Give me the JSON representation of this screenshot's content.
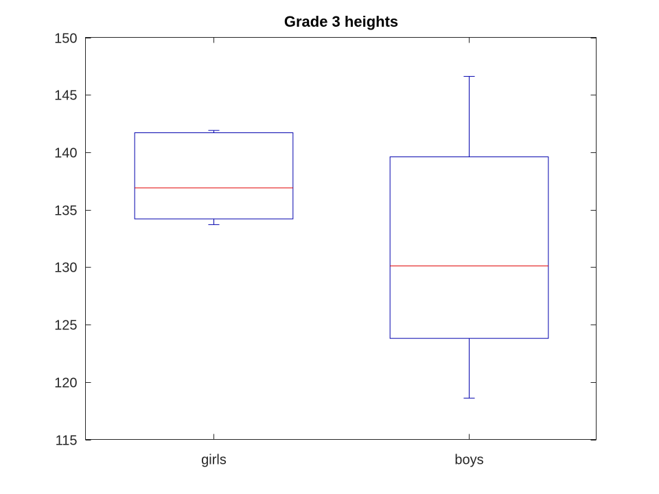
{
  "chart_data": {
    "type": "box",
    "title": "Grade 3 heights",
    "xlabel": "",
    "ylabel": "",
    "ylim": [
      115,
      150
    ],
    "yticks": [
      115,
      120,
      125,
      130,
      135,
      140,
      145,
      150
    ],
    "grid": false,
    "categories": [
      "girls",
      "boys"
    ],
    "boxes": [
      {
        "category": "girls",
        "min": 133.7,
        "q1": 134.2,
        "median": 136.9,
        "q3": 141.7,
        "max": 141.9
      },
      {
        "category": "boys",
        "min": 118.6,
        "q1": 123.8,
        "median": 130.1,
        "q3": 139.6,
        "max": 146.6
      }
    ],
    "colors": {
      "box": "#0000ad",
      "median": "#e00000",
      "axis": "#262626"
    }
  }
}
